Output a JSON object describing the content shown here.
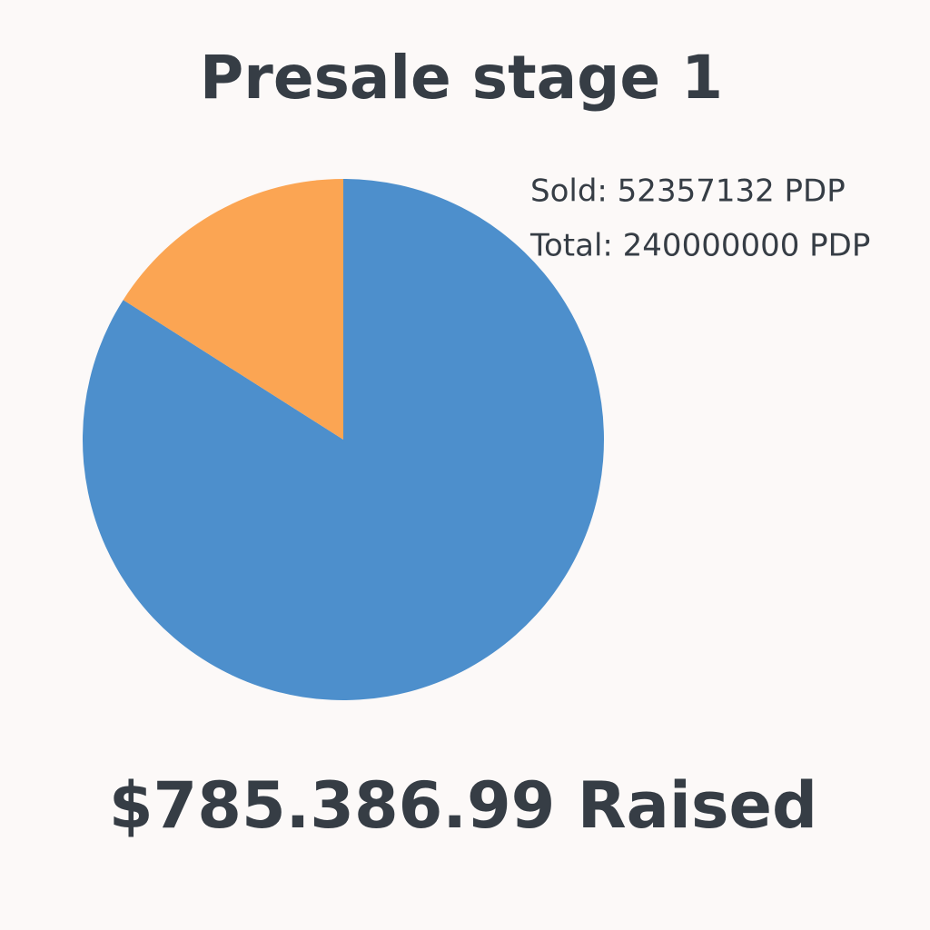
{
  "chart_data": {
    "type": "pie",
    "title": "Presale stage 1",
    "values": [
      84,
      16
    ],
    "colors": [
      "#4d8fcc",
      "#fba553"
    ],
    "annotations": [
      "Sold: 52357132 PDP",
      "Total: 240000000 PDP"
    ],
    "footer": "$785.386.99 Raised"
  }
}
